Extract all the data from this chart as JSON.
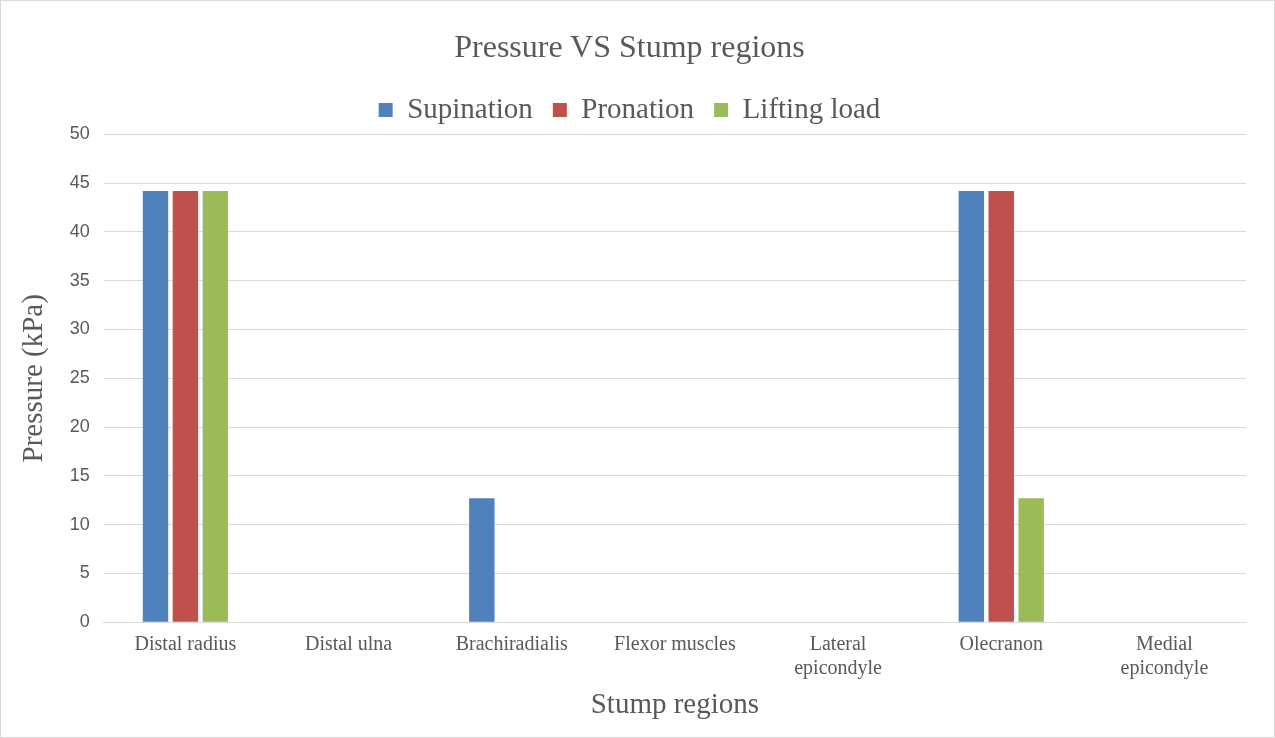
{
  "chart_data": {
    "type": "bar",
    "title": "Pressure VS Stump regions",
    "xlabel": "Stump regions",
    "ylabel": "Pressure (kPa)",
    "categories": [
      "Distal radius",
      "Distal ulna",
      "Brachiradialis",
      "Flexor muscles",
      "Lateral epicondyle",
      "Olecranon",
      "Medial epicondyle"
    ],
    "series": [
      {
        "name": "Supination",
        "color": "#4f81bd",
        "values": [
          44.2,
          0,
          12.7,
          0,
          0,
          44.2,
          0
        ]
      },
      {
        "name": "Pronation",
        "color": "#c0504d",
        "values": [
          44.2,
          0,
          0,
          0,
          0,
          44.2,
          0
        ]
      },
      {
        "name": "Lifting load",
        "color": "#9bbb59",
        "values": [
          44.2,
          0,
          0,
          0,
          0,
          12.7,
          0
        ]
      }
    ],
    "ylim": [
      0,
      50
    ],
    "yticks": [
      0,
      5,
      10,
      15,
      20,
      25,
      30,
      35,
      40,
      45,
      50
    ],
    "grid": "y",
    "legend": "top"
  }
}
